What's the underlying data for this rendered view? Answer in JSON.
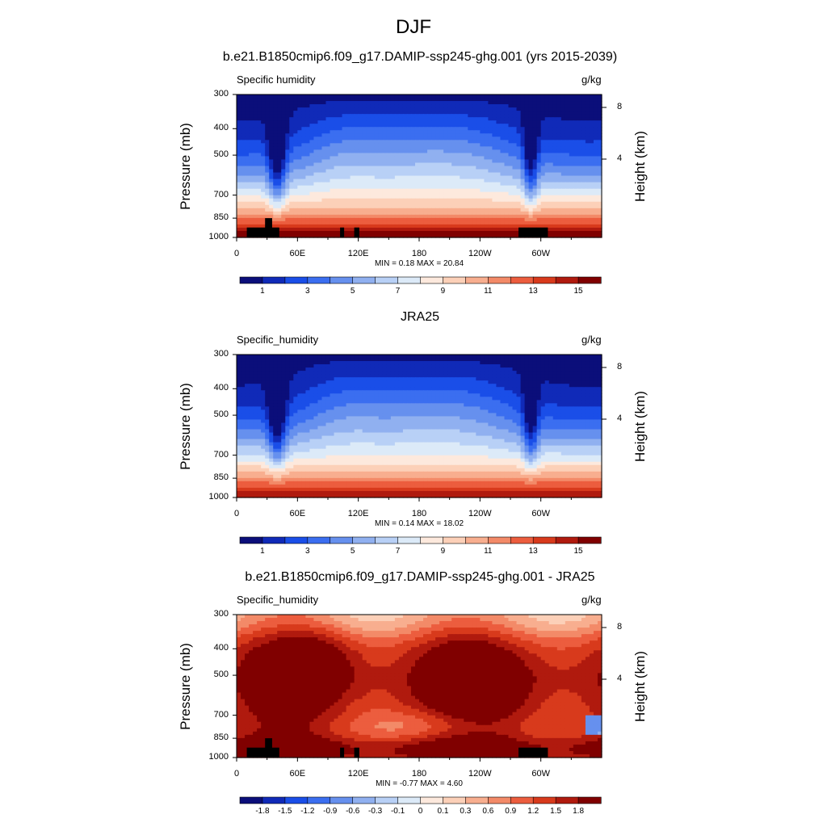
{
  "figure": {
    "title": "DJF"
  },
  "chart_data": [
    {
      "type": "heatmap",
      "title": "b.e21.B1850cmip6.f09_g17.DAMIP-ssp245-ghg.001 (yrs 2015-2039)",
      "left_string": "Specific humidity",
      "units": "g/kg",
      "ylabel": "Pressure (mb)",
      "right_ylabel": "Height (km)",
      "pressure_ticks": [
        "300",
        "400",
        "500",
        "700",
        "850",
        "1000"
      ],
      "height_ticks": [
        "8",
        "4"
      ],
      "x_ticks": [
        "0",
        "60E",
        "120E",
        "180",
        "120W",
        "60W"
      ],
      "xlim": [
        0,
        360
      ],
      "ylim_mb": [
        1000,
        300
      ],
      "y_scale": "log",
      "min_max_text": "MIN =   0.18  MAX =  20.84",
      "min": 0.18,
      "max": 20.84,
      "colorbar_labels": [
        "1",
        "3",
        "5",
        "7",
        "9",
        "11",
        "13",
        "15"
      ],
      "colorbar_colors": [
        "#0b0e7a",
        "#102ab8",
        "#1a4ee8",
        "#3b6ef0",
        "#6690ee",
        "#90b0f0",
        "#b8d0f6",
        "#dceaf8",
        "#fde9dd",
        "#fcd0b8",
        "#f8ae8f",
        "#f38a68",
        "#ec5d3e",
        "#d83a1c",
        "#b01a0e",
        "#800000"
      ],
      "masks": [
        "topography"
      ]
    },
    {
      "type": "heatmap",
      "title": "JRA25",
      "left_string": "Specific_humidity",
      "units": "g/kg",
      "ylabel": "Pressure (mb)",
      "right_ylabel": "Height (km)",
      "pressure_ticks": [
        "300",
        "400",
        "500",
        "700",
        "850",
        "1000"
      ],
      "height_ticks": [
        "8",
        "4"
      ],
      "x_ticks": [
        "0",
        "60E",
        "120E",
        "180",
        "120W",
        "60W"
      ],
      "xlim": [
        0,
        360
      ],
      "ylim_mb": [
        1000,
        300
      ],
      "y_scale": "log",
      "min_max_text": "MIN =   0.14  MAX =  18.02",
      "min": 0.14,
      "max": 18.02,
      "colorbar_labels": [
        "1",
        "3",
        "5",
        "7",
        "9",
        "11",
        "13",
        "15"
      ],
      "colorbar_colors": [
        "#0b0e7a",
        "#102ab8",
        "#1a4ee8",
        "#3b6ef0",
        "#6690ee",
        "#90b0f0",
        "#b8d0f6",
        "#dceaf8",
        "#fde9dd",
        "#fcd0b8",
        "#f8ae8f",
        "#f38a68",
        "#ec5d3e",
        "#d83a1c",
        "#b01a0e",
        "#800000"
      ],
      "masks": []
    },
    {
      "type": "heatmap",
      "title": "b.e21.B1850cmip6.f09_g17.DAMIP-ssp245-ghg.001 - JRA25",
      "left_string": "Specific_humidity",
      "units": "g/kg",
      "ylabel": "Pressure (mb)",
      "right_ylabel": "Height (km)",
      "pressure_ticks": [
        "300",
        "400",
        "500",
        "700",
        "850",
        "1000"
      ],
      "height_ticks": [
        "8",
        "4"
      ],
      "x_ticks": [
        "0",
        "60E",
        "120E",
        "180",
        "120W",
        "60W"
      ],
      "xlim": [
        0,
        360
      ],
      "ylim_mb": [
        1000,
        300
      ],
      "y_scale": "log",
      "min_max_text": "MIN =  -0.77  MAX =   4.60",
      "min": -0.77,
      "max": 4.6,
      "colorbar_labels": [
        "-1.8",
        "-1.5",
        "-1.2",
        "-0.9",
        "-0.6",
        "-0.3",
        "-0.1",
        "0",
        "0.1",
        "0.3",
        "0.6",
        "0.9",
        "1.2",
        "1.5",
        "1.8"
      ],
      "colorbar_colors": [
        "#0b0e7a",
        "#102ab8",
        "#1a4ee8",
        "#3b6ef0",
        "#6690ee",
        "#90b0f0",
        "#b8d0f6",
        "#dceaf8",
        "#fde9dd",
        "#fcd0b8",
        "#f8ae8f",
        "#f38a68",
        "#ec5d3e",
        "#d83a1c",
        "#b01a0e",
        "#800000"
      ],
      "masks": [
        "topography"
      ]
    }
  ]
}
